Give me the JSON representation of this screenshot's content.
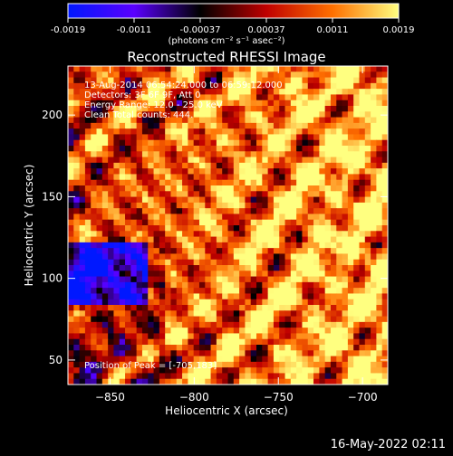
{
  "colorbar": {
    "tick_labels": [
      "-0.0019",
      "-0.0011",
      "-0.00037",
      "0.00037",
      "0.0011",
      "0.0019"
    ],
    "units_label": "(photons cm⁻² s⁻¹ asec⁻²)",
    "colors": [
      "#0018ff",
      "#5a00ff",
      "#000000",
      "#c00000",
      "#ff7000",
      "#ffff80"
    ]
  },
  "chart_data": {
    "type": "heatmap",
    "title": "Reconstructed RHESSI Image",
    "xlabel": "Heliocentric X (arcsec)",
    "ylabel": "Heliocentric Y (arcsec)",
    "xlim": [
      -875,
      -685
    ],
    "ylim": [
      35,
      230
    ],
    "x_ticks": [
      -850,
      -800,
      -750,
      -700
    ],
    "y_ticks": [
      50,
      100,
      150,
      200
    ],
    "x_tick_labels": [
      "−850",
      "−800",
      "−750",
      "−700"
    ],
    "y_tick_labels": [
      "50",
      "100",
      "150",
      "200"
    ],
    "value_range": [
      -0.0019,
      0.0019
    ],
    "peak": {
      "x": -705,
      "y": 183
    },
    "annotations": [
      "13-Aug-2014 06:54:24.000 to 06:59:12.000",
      "Detectors: 3F 6F 9F, Att 0",
      "Energy Range: 12.0 - 25.0 keV",
      "Clean    Total counts: 444."
    ],
    "peak_label": "Position of Peak = [-705,183]"
  },
  "footer": {
    "timestamp": "16-May-2022 02:11"
  }
}
